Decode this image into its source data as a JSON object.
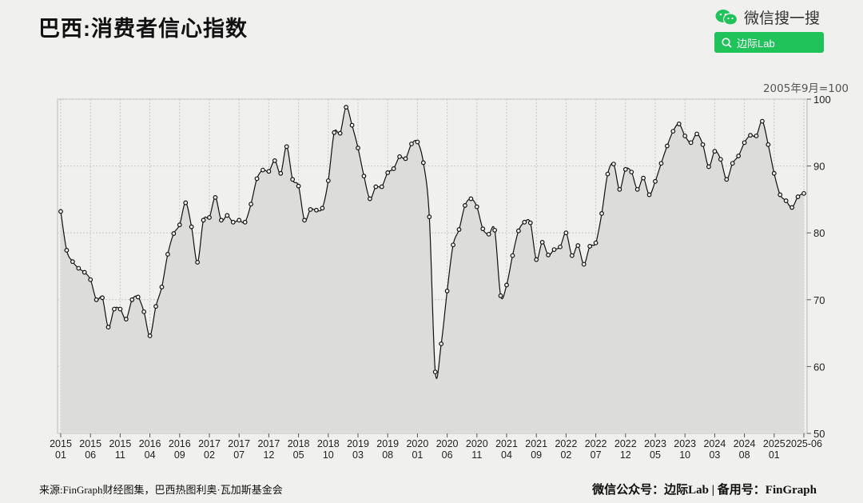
{
  "title": "巴西:消费者信心指数",
  "wechat": {
    "label": "微信搜一搜",
    "search_label": "边际Lab",
    "icon": "wechat-icon",
    "accent": "#20c25a"
  },
  "footer": {
    "source": "来源:FinGraph财经图集，巴西热图利奥·瓦加斯基金会",
    "right": "微信公众号：边际Lab  |  备用号：FinGraph"
  },
  "chart_data": {
    "type": "area",
    "base_note": "2005年9月=100",
    "ylim": [
      50,
      100
    ],
    "yticks": [
      50,
      60,
      70,
      80,
      90,
      100
    ],
    "y_axis_side": "right",
    "grid": true,
    "x_ticks": [
      {
        "year": "2015",
        "month": "01",
        "date": "2015-01"
      },
      {
        "year": "2015",
        "month": "06",
        "date": "2015-06"
      },
      {
        "year": "2015",
        "month": "11",
        "date": "2015-11"
      },
      {
        "year": "2016",
        "month": "04",
        "date": "2016-04"
      },
      {
        "year": "2016",
        "month": "09",
        "date": "2016-09"
      },
      {
        "year": "2017",
        "month": "02",
        "date": "2017-02"
      },
      {
        "year": "2017",
        "month": "07",
        "date": "2017-07"
      },
      {
        "year": "2017",
        "month": "12",
        "date": "2017-12"
      },
      {
        "year": "2018",
        "month": "05",
        "date": "2018-05"
      },
      {
        "year": "2018",
        "month": "10",
        "date": "2018-10"
      },
      {
        "year": "2019",
        "month": "03",
        "date": "2019-03"
      },
      {
        "year": "2019",
        "month": "08",
        "date": "2019-08"
      },
      {
        "year": "2020",
        "month": "01",
        "date": "2020-01"
      },
      {
        "year": "2020",
        "month": "06",
        "date": "2020-06"
      },
      {
        "year": "2020",
        "month": "11",
        "date": "2020-11"
      },
      {
        "year": "2021",
        "month": "04",
        "date": "2021-04"
      },
      {
        "year": "2021",
        "month": "09",
        "date": "2021-09"
      },
      {
        "year": "2022",
        "month": "02",
        "date": "2022-02"
      },
      {
        "year": "2022",
        "month": "07",
        "date": "2022-07"
      },
      {
        "year": "2022",
        "month": "12",
        "date": "2022-12"
      },
      {
        "year": "2023",
        "month": "05",
        "date": "2023-05"
      },
      {
        "year": "2023",
        "month": "10",
        "date": "2023-10"
      },
      {
        "year": "2024",
        "month": "03",
        "date": "2024-03"
      },
      {
        "year": "2024",
        "month": "08",
        "date": "2024-08"
      },
      {
        "year": "2025",
        "month": "01",
        "date": "2025-01"
      },
      {
        "year": "2025-06",
        "month": "",
        "date": "2025-06"
      }
    ],
    "start": "2015-01",
    "end": "2025-06",
    "values": [
      83.2,
      77.4,
      75.7,
      74.7,
      74.1,
      73.0,
      70.0,
      70.3,
      65.9,
      68.6,
      68.6,
      67.1,
      70.0,
      70.4,
      68.2,
      64.6,
      69.0,
      71.9,
      76.8,
      79.9,
      81.2,
      84.5,
      80.9,
      75.6,
      81.9,
      82.3,
      85.3,
      81.9,
      82.6,
      81.6,
      81.9,
      81.6,
      84.3,
      88.1,
      89.4,
      89.2,
      90.8,
      88.9,
      92.9,
      88.0,
      87.0,
      81.9,
      83.5,
      83.4,
      83.7,
      87.8,
      95.0,
      94.9,
      98.8,
      96.1,
      92.7,
      88.5,
      85.1,
      86.9,
      86.9,
      89.0,
      89.6,
      91.4,
      91.1,
      93.3,
      93.6,
      90.5,
      82.4,
      59.2,
      63.4,
      71.3,
      78.2,
      80.5,
      84.1,
      85.1,
      83.9,
      80.6,
      79.8,
      80.4,
      70.6,
      72.2,
      76.6,
      80.3,
      81.6,
      81.5,
      76.0,
      78.6,
      76.7,
      77.5,
      77.9,
      80.0,
      76.6,
      78.1,
      75.3,
      78.0,
      78.5,
      82.9,
      88.8,
      90.3,
      86.5,
      89.5,
      89.1,
      86.5,
      88.2,
      85.7,
      87.7,
      90.4,
      93.0,
      95.2,
      96.3,
      94.5,
      93.5,
      94.8,
      93.2,
      89.9,
      92.2,
      91.0,
      88.0,
      90.4,
      91.5,
      93.5,
      94.6,
      94.5,
      96.7,
      93.2,
      88.9,
      85.7,
      84.8,
      83.8,
      85.4,
      85.9
    ]
  }
}
